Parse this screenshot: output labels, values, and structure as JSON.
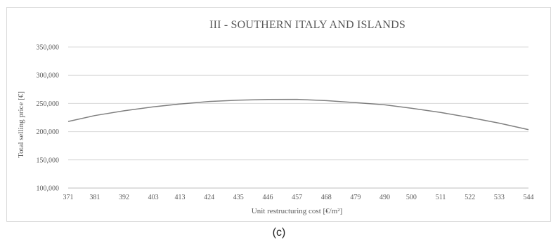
{
  "caption": "(c)",
  "chart_data": {
    "type": "line",
    "title": "III - SOUTHERN ITALY AND ISLANDS",
    "xlabel": "Unit restructuring cost [€/m²]",
    "ylabel": "Total selling price [€]",
    "categories": [
      "371",
      "381",
      "392",
      "403",
      "413",
      "424",
      "435",
      "446",
      "457",
      "468",
      "479",
      "490",
      "500",
      "511",
      "522",
      "533",
      "544"
    ],
    "x": [
      371,
      381,
      392,
      403,
      413,
      424,
      435,
      446,
      457,
      468,
      479,
      490,
      500,
      511,
      522,
      533,
      544
    ],
    "ylim": [
      100000,
      350000
    ],
    "yticks": [
      "100,000",
      "150,000",
      "200,000",
      "250,000",
      "300,000",
      "350,000"
    ],
    "ytick_values": [
      100000,
      150000,
      200000,
      250000,
      300000,
      350000
    ],
    "grid": "horizontal",
    "line_color": "#808080",
    "series": [
      {
        "values": [
          218000,
          228500,
          237000,
          244000,
          249000,
          253500,
          255800,
          257000,
          257200,
          255000,
          251500,
          247500,
          241500,
          234000,
          225000,
          215000,
          203500
        ]
      }
    ]
  }
}
